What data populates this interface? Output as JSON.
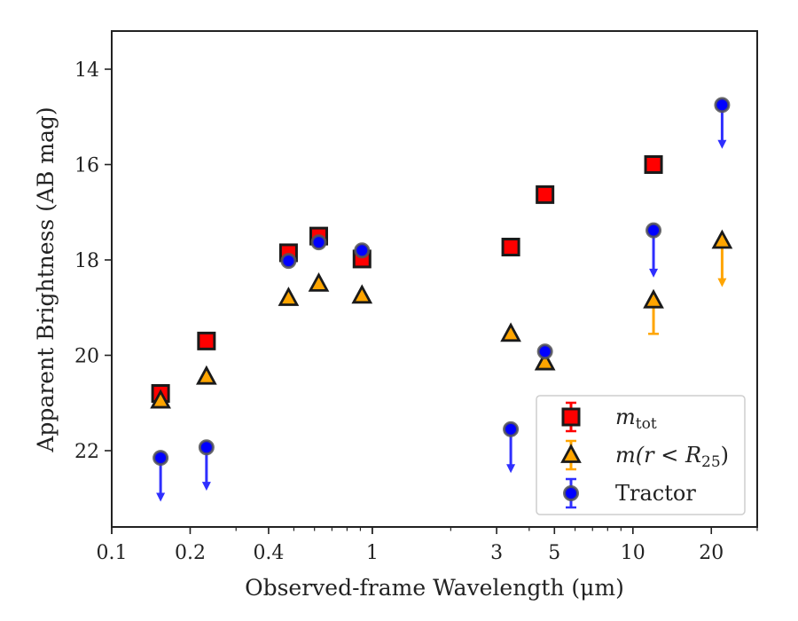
{
  "chart_data": {
    "type": "scatter",
    "title": "",
    "xlabel": "Observed-frame Wavelength (μm)",
    "ylabel": "Apparent Brightness (AB mag)",
    "xscale": "log",
    "xlim": [
      0.1,
      30
    ],
    "ylim": [
      23.6,
      13.2
    ],
    "y_inverted": true,
    "xticks": [
      {
        "value": 0.1,
        "label": "0.1"
      },
      {
        "value": 0.2,
        "label": "0.2"
      },
      {
        "value": 0.4,
        "label": "0.4"
      },
      {
        "value": 1,
        "label": "1"
      },
      {
        "value": 3,
        "label": "3"
      },
      {
        "value": 5,
        "label": "5"
      },
      {
        "value": 10,
        "label": "10"
      },
      {
        "value": 20,
        "label": "20"
      }
    ],
    "yticks": [
      14,
      16,
      18,
      20,
      22
    ],
    "grid": false,
    "legend_position": "lower-right",
    "series": [
      {
        "name": "m_tot",
        "label_main": "m",
        "label_sub": "tot",
        "marker": "square",
        "color": "#ff0000",
        "edge": "#1a1a1a",
        "points": [
          {
            "x": 0.154,
            "y": 20.8
          },
          {
            "x": 0.231,
            "y": 19.7
          },
          {
            "x": 0.477,
            "y": 17.85
          },
          {
            "x": 0.623,
            "y": 17.5
          },
          {
            "x": 0.913,
            "y": 17.98
          },
          {
            "x": 3.4,
            "y": 17.73
          },
          {
            "x": 4.6,
            "y": 16.63
          },
          {
            "x": 12.0,
            "y": 16.0
          }
        ]
      },
      {
        "name": "m(r < R25)",
        "label_main": "m(r < R",
        "label_sub": "25",
        "label_end": ")",
        "marker": "triangle",
        "color": "#ffa500",
        "edge": "#1a1a1a",
        "points": [
          {
            "x": 0.154,
            "y": 20.95
          },
          {
            "x": 0.231,
            "y": 20.45
          },
          {
            "x": 0.477,
            "y": 18.8
          },
          {
            "x": 0.623,
            "y": 18.5
          },
          {
            "x": 0.913,
            "y": 18.75
          },
          {
            "x": 3.4,
            "y": 19.55
          },
          {
            "x": 4.6,
            "y": 20.15
          },
          {
            "x": 12.0,
            "y": 18.85,
            "limit_to": 19.55
          },
          {
            "x": 22.0,
            "y": 17.6,
            "upper_limit": true,
            "arrow_to": 18.55
          }
        ]
      },
      {
        "name": "Tractor",
        "label_main": "Tractor",
        "marker": "circle",
        "color": "#0000ff",
        "edge": "#555555",
        "points": [
          {
            "x": 0.154,
            "y": 22.15,
            "upper_limit": true,
            "arrow_to": 23.05
          },
          {
            "x": 0.231,
            "y": 21.93,
            "upper_limit": true,
            "arrow_to": 22.82
          },
          {
            "x": 0.477,
            "y": 18.02
          },
          {
            "x": 0.623,
            "y": 17.63
          },
          {
            "x": 0.913,
            "y": 17.8
          },
          {
            "x": 3.4,
            "y": 21.55,
            "upper_limit": true,
            "arrow_to": 22.45
          },
          {
            "x": 4.6,
            "y": 19.92
          },
          {
            "x": 12.0,
            "y": 17.38,
            "upper_limit": true,
            "arrow_to": 18.35
          },
          {
            "x": 22.0,
            "y": 14.75,
            "upper_limit": true,
            "arrow_to": 15.65
          }
        ]
      }
    ]
  }
}
